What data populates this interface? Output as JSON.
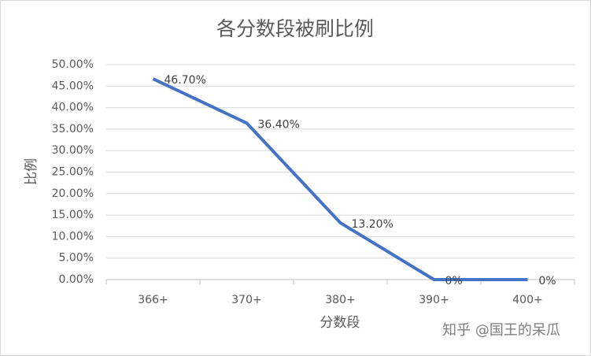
{
  "chart_data": {
    "type": "line",
    "title": "各分数段被刷比例",
    "x_label": "分数段",
    "y_label": "比例",
    "categories": [
      "366+",
      "370+",
      "380+",
      "390+",
      "400+"
    ],
    "series": [
      {
        "name": "比例",
        "color": "#4472c4",
        "values": [
          46.7,
          36.4,
          13.2,
          0,
          0
        ],
        "value_labels": [
          "46.70%",
          "36.40%",
          "13.20%",
          "0%",
          "0%"
        ]
      }
    ],
    "ylim": [
      0,
      50
    ],
    "yticks": [
      {
        "value": 0,
        "label": "0.00%"
      },
      {
        "value": 5,
        "label": "5.00%"
      },
      {
        "value": 10,
        "label": "10.00%"
      },
      {
        "value": 15,
        "label": "15.00%"
      },
      {
        "value": 20,
        "label": "20.00%"
      },
      {
        "value": 25,
        "label": "25.00%"
      },
      {
        "value": 30,
        "label": "30.00%"
      },
      {
        "value": 35,
        "label": "35.00%"
      },
      {
        "value": 40,
        "label": "40.00%"
      },
      {
        "value": 45,
        "label": "45.00%"
      },
      {
        "value": 50,
        "label": "50.00%"
      }
    ],
    "grid": true,
    "watermark": "知乎 @国王的呆瓜"
  }
}
